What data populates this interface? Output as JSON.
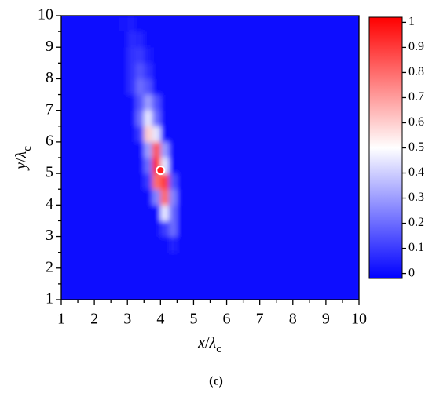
{
  "chart_data": {
    "type": "heatmap",
    "xlabel": [
      "x",
      "/",
      "λ",
      "c"
    ],
    "ylabel": [
      "y",
      "/",
      "λ",
      "c"
    ],
    "caption": "(c)",
    "xlim": [
      1,
      10
    ],
    "ylim": [
      1,
      10
    ],
    "xticks": [
      1,
      2,
      3,
      4,
      5,
      6,
      7,
      8,
      9,
      10
    ],
    "yticks": [
      1,
      2,
      3,
      4,
      5,
      6,
      7,
      8,
      9,
      10
    ],
    "xminorticks": [
      1.5,
      2.5,
      3.5,
      4.5,
      5.5,
      6.5,
      7.5,
      8.5,
      9.5
    ],
    "yminorticks": [
      1.5,
      2.5,
      3.5,
      4.5,
      5.5,
      6.5,
      7.5,
      8.5,
      9.5
    ],
    "colormap": [
      "#0000ff",
      "#ffffff",
      "#ff0000"
    ],
    "clim": [
      -0.02,
      1.02
    ],
    "cticks": [
      0,
      0.1,
      0.2,
      0.3,
      0.4,
      0.5,
      0.6,
      0.7,
      0.8,
      0.9,
      1
    ],
    "x": [
      1.125,
      1.375,
      1.625,
      1.875,
      2.125,
      2.375,
      2.625,
      2.875,
      3.125,
      3.375,
      3.625,
      3.875,
      4.125,
      4.375,
      4.625,
      4.875,
      5.125,
      5.375,
      5.625,
      5.875,
      6.125,
      6.375,
      6.625,
      6.875,
      7.125,
      7.375,
      7.625,
      7.875,
      8.125,
      8.375,
      8.625,
      8.875,
      9.125,
      9.375,
      9.625,
      9.875
    ],
    "y": [
      1.25,
      1.75,
      2.25,
      2.75,
      3.25,
      3.75,
      4.25,
      4.75,
      5.25,
      5.75,
      6.25,
      6.75,
      7.25,
      7.75,
      8.25,
      8.75,
      9.25,
      9.75
    ],
    "z": [
      [
        0,
        0,
        0,
        0,
        0,
        0,
        0,
        0,
        0,
        0,
        0,
        0,
        0,
        0,
        0,
        0,
        0,
        0,
        0,
        0,
        0,
        0,
        0,
        0,
        0,
        0,
        0,
        0,
        0,
        0,
        0,
        0,
        0,
        0,
        0,
        0
      ],
      [
        0,
        0,
        0,
        0,
        0,
        0,
        0,
        0,
        0,
        0,
        0,
        0,
        0,
        0,
        0,
        0,
        0,
        0,
        0,
        0,
        0,
        0,
        0,
        0,
        0,
        0,
        0,
        0,
        0,
        0,
        0,
        0,
        0,
        0,
        0,
        0
      ],
      [
        0,
        0,
        0,
        0,
        0,
        0,
        0,
        0,
        0,
        0,
        0,
        0,
        0,
        0,
        0,
        0,
        0,
        0,
        0,
        0,
        0,
        0,
        0,
        0,
        0,
        0,
        0,
        0,
        0,
        0,
        0,
        0,
        0,
        0,
        0,
        0
      ],
      [
        0,
        0,
        0,
        0,
        0,
        0,
        0,
        0,
        0,
        0,
        0,
        0,
        0,
        0.05,
        0,
        0,
        0,
        0,
        0,
        0,
        0,
        0,
        0,
        0,
        0,
        0,
        0,
        0,
        0,
        0,
        0,
        0,
        0,
        0,
        0,
        0
      ],
      [
        0,
        0,
        0,
        0,
        0,
        0,
        0,
        0,
        0,
        0,
        0,
        0,
        0.1,
        0.2,
        0,
        0,
        0,
        0,
        0,
        0,
        0,
        0,
        0,
        0,
        0,
        0,
        0,
        0,
        0,
        0,
        0,
        0,
        0,
        0,
        0,
        0
      ],
      [
        0,
        0,
        0,
        0,
        0,
        0,
        0,
        0,
        0,
        0,
        0,
        0,
        0.45,
        0.2,
        0,
        0,
        0,
        0,
        0,
        0,
        0,
        0,
        0,
        0,
        0,
        0,
        0,
        0,
        0,
        0,
        0,
        0,
        0,
        0,
        0,
        0
      ],
      [
        0,
        0,
        0,
        0,
        0,
        0,
        0,
        0,
        0,
        0,
        0,
        0.25,
        0.8,
        0.25,
        0,
        0,
        0,
        0,
        0,
        0,
        0,
        0,
        0,
        0,
        0,
        0,
        0,
        0,
        0,
        0,
        0,
        0,
        0,
        0,
        0,
        0
      ],
      [
        0,
        0,
        0,
        0,
        0,
        0,
        0,
        0,
        0,
        0,
        0.1,
        0.8,
        0.9,
        0.15,
        0,
        0,
        0,
        0,
        0,
        0,
        0,
        0,
        0,
        0,
        0,
        0,
        0,
        0,
        0,
        0,
        0,
        0,
        0,
        0,
        0,
        0
      ],
      [
        0,
        0,
        0,
        0,
        0,
        0,
        0,
        0,
        0,
        0,
        0.2,
        0.95,
        0.45,
        0,
        0,
        0,
        0,
        0,
        0,
        0,
        0,
        0,
        0,
        0,
        0,
        0,
        0,
        0,
        0,
        0,
        0,
        0,
        0,
        0,
        0,
        0
      ],
      [
        0,
        0,
        0,
        0,
        0,
        0,
        0,
        0,
        0,
        0,
        0.3,
        0.85,
        0.3,
        0,
        0,
        0,
        0,
        0,
        0,
        0,
        0,
        0,
        0,
        0,
        0,
        0,
        0,
        0,
        0,
        0,
        0,
        0,
        0,
        0,
        0,
        0
      ],
      [
        0,
        0,
        0,
        0,
        0,
        0,
        0,
        0,
        0,
        0.1,
        0.6,
        0.45,
        0,
        0,
        0,
        0,
        0,
        0,
        0,
        0,
        0,
        0,
        0,
        0,
        0,
        0,
        0,
        0,
        0,
        0,
        0,
        0,
        0,
        0,
        0,
        0
      ],
      [
        0,
        0,
        0,
        0,
        0,
        0,
        0,
        0,
        0,
        0.2,
        0.45,
        0.2,
        0,
        0,
        0,
        0,
        0,
        0,
        0,
        0,
        0,
        0,
        0,
        0,
        0,
        0,
        0,
        0,
        0,
        0,
        0,
        0,
        0,
        0,
        0,
        0
      ],
      [
        0,
        0,
        0,
        0,
        0,
        0,
        0,
        0,
        0,
        0.15,
        0.3,
        0.15,
        0,
        0,
        0,
        0,
        0,
        0,
        0,
        0,
        0,
        0,
        0,
        0,
        0,
        0,
        0,
        0,
        0,
        0,
        0,
        0,
        0,
        0,
        0,
        0
      ],
      [
        0,
        0,
        0,
        0,
        0,
        0,
        0,
        0,
        0.08,
        0.2,
        0.15,
        0,
        0,
        0,
        0,
        0,
        0,
        0,
        0,
        0,
        0,
        0,
        0,
        0,
        0,
        0,
        0,
        0,
        0,
        0,
        0,
        0,
        0,
        0,
        0,
        0
      ],
      [
        0,
        0,
        0,
        0,
        0,
        0,
        0,
        0,
        0.08,
        0.15,
        0.08,
        0,
        0,
        0,
        0,
        0,
        0,
        0,
        0,
        0,
        0,
        0,
        0,
        0,
        0,
        0,
        0,
        0,
        0,
        0,
        0,
        0,
        0,
        0,
        0,
        0
      ],
      [
        0,
        0,
        0,
        0,
        0,
        0,
        0,
        0,
        0.08,
        0.1,
        0.04,
        0,
        0,
        0,
        0,
        0,
        0,
        0,
        0,
        0,
        0,
        0,
        0,
        0,
        0,
        0,
        0,
        0,
        0,
        0,
        0,
        0,
        0,
        0,
        0,
        0
      ],
      [
        0,
        0,
        0,
        0,
        0,
        0,
        0,
        0,
        0.07,
        0.06,
        0,
        0,
        0,
        0,
        0,
        0,
        0,
        0,
        0,
        0,
        0,
        0,
        0,
        0,
        0,
        0,
        0,
        0,
        0,
        0,
        0,
        0,
        0,
        0,
        0,
        0
      ],
      [
        0,
        0,
        0,
        0,
        0,
        0,
        0,
        0.02,
        0.04,
        0,
        0,
        0,
        0,
        0,
        0,
        0,
        0,
        0,
        0,
        0,
        0,
        0,
        0,
        0,
        0,
        0,
        0,
        0,
        0,
        0,
        0,
        0,
        0,
        0,
        0,
        0
      ]
    ],
    "markers": [
      {
        "x": 4,
        "y": 5.1
      }
    ]
  }
}
